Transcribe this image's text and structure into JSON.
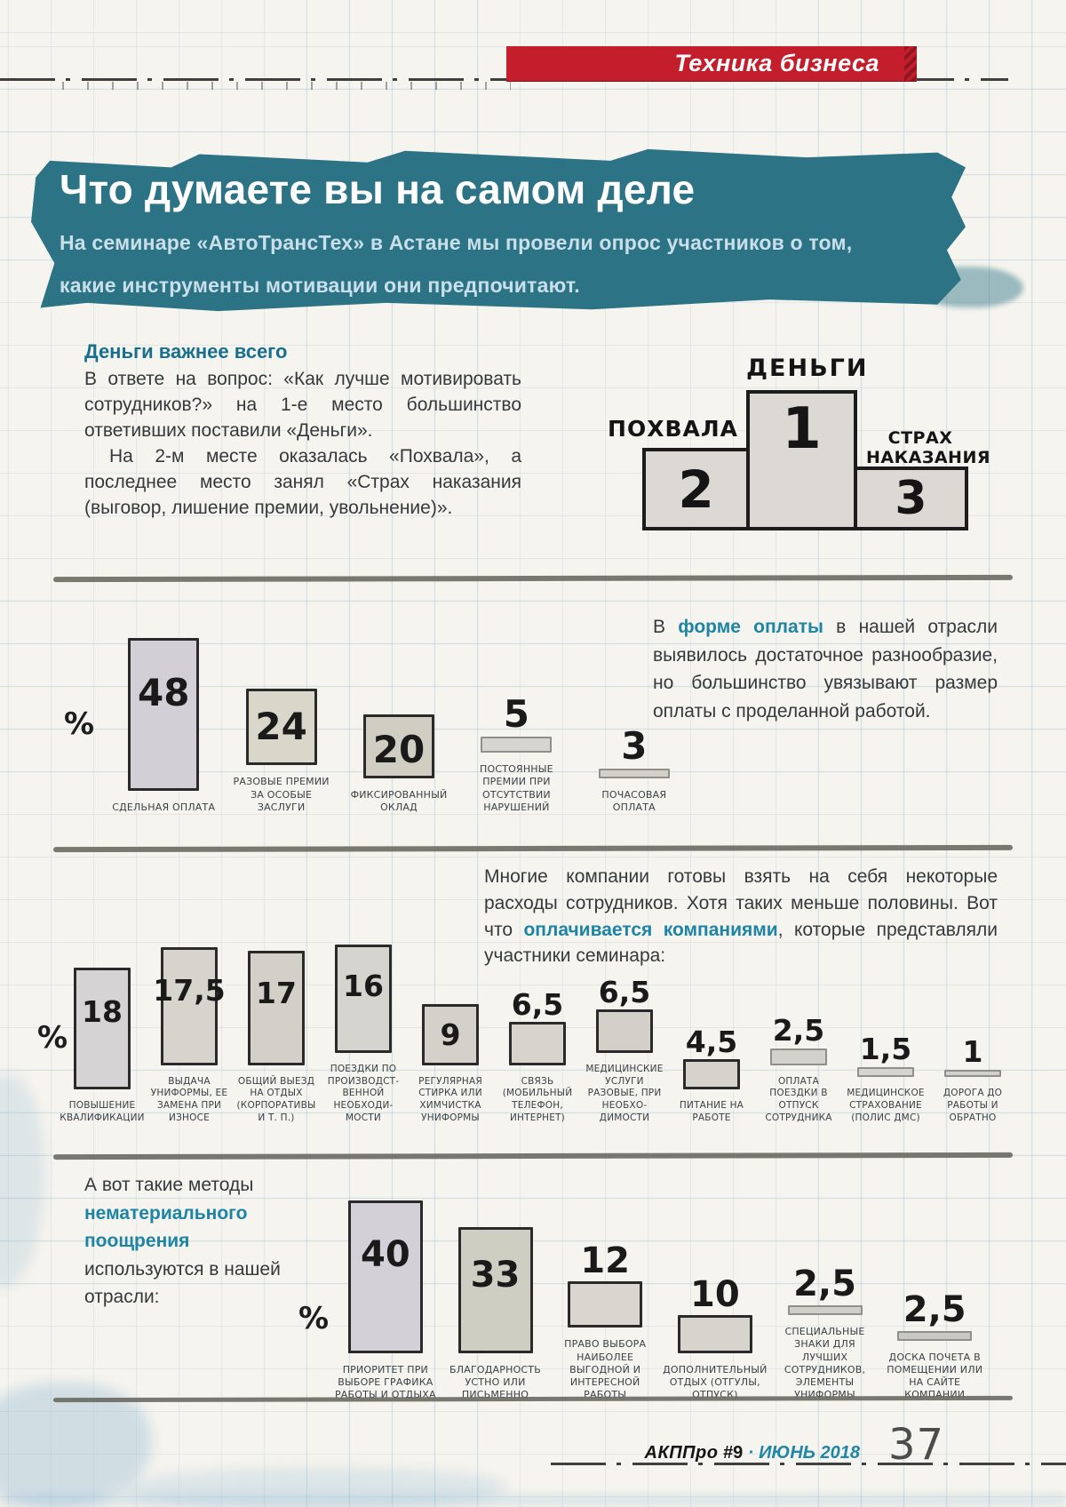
{
  "colors": {
    "accent_teal": "#1d84a5",
    "banner_teal": "#2d7386",
    "ribbon_red": "#c41e2c"
  },
  "header": {
    "ribbon": "Техника бизнеса"
  },
  "hero": {
    "title": "Что думаете вы на самом деле",
    "subtitle_line1": "На семинаре «АвтоТрансТех» в Астане мы провели опрос участников о том,",
    "subtitle_line2": "какие инструменты мотивации они предпочитают."
  },
  "intro": {
    "heading": "Деньги важнее всего",
    "para1": "В ответе на вопрос: «Как лучше мотивировать сотрудников?» на 1-е место большинство ответивших поставили «Деньги».",
    "para2": "На 2-м месте оказалась «Похвала», а последнее место занял «Страх наказания (выговор, лишение премии, увольнение)»."
  },
  "podium": {
    "first": {
      "label": "ДЕНЬГИ",
      "rank": "1"
    },
    "second": {
      "label": "ПОХВАЛА",
      "rank": "2"
    },
    "third": {
      "label": "СТРАХ НАКАЗАНИЯ",
      "rank": "3"
    }
  },
  "payment_text": {
    "pre": "В ",
    "hl": "форме оплаты",
    "post": " в нашей отрасли выявилось достаточное разнообразие, но большинство увязывают размер оплаты с проделанной работой."
  },
  "company_text": {
    "pre": "Многие компании готовы взять на себя некоторые расходы сотрудников. Хотя таких меньше половины. Вот что ",
    "hl": "оплачивается компаниями",
    "post": ", которые представляли участники семинара:"
  },
  "nonmaterial_text": {
    "pre": "А вот такие методы ",
    "hl": "нематериального поощрения",
    "post": " используются в нашей отрасли:"
  },
  "chart_data": [
    {
      "type": "bar",
      "title": "",
      "xlabel": "",
      "ylabel": "%",
      "unit": "%",
      "grid": false,
      "legend": "none",
      "categories": [
        "СДЕЛЬНАЯ ОПЛАТА",
        "РАЗОВЫЕ ПРЕМИИ ЗА ОСОБЫЕ ЗАСЛУГИ",
        "ФИКСИРОВАННЫЙ ОКЛАД",
        "ПОСТОЯННЫЕ ПРЕМИИ ПРИ ОТСУТСТВИИ НАРУШЕНИЙ",
        "ПОЧАСОВАЯ ОПЛАТА"
      ],
      "values": [
        48,
        24,
        20,
        5,
        3
      ],
      "value_labels": [
        "48",
        "24",
        "20",
        "5",
        "3"
      ],
      "bar_colors": [
        "#d2cfd7",
        "#d9d6ca",
        "#d0cec2",
        "#d7d5d0",
        "#d2d0c9"
      ]
    },
    {
      "type": "bar",
      "title": "",
      "xlabel": "",
      "ylabel": "%",
      "unit": "%",
      "grid": false,
      "legend": "none",
      "categories": [
        "ПОВЫШЕНИЕ КВАЛИФИКАЦИИ",
        "ВЫДАЧА УНИФОРМЫ, ЕЕ ЗАМЕНА ПРИ ИЗНОСЕ",
        "ОБЩИЙ ВЫЕЗД НА ОТДЫХ (КОРПОРАТИВЫ И Т. П.)",
        "ПОЕЗДКИ ПО ПРОИЗВОДСТ-ВЕННОЙ НЕОБХОДИ-МОСТИ",
        "РЕГУЛЯРНАЯ СТИРКА ИЛИ ХИМЧИСТКА УНИФОРМЫ",
        "СВЯЗЬ (МОБИЛЬНЫЙ ТЕЛЕФОН, ИНТЕРНЕТ)",
        "МЕДИЦИНСКИЕ УСЛУГИ РАЗОВЫЕ, ПРИ НЕОБХО-ДИМОСТИ",
        "ПИТАНИЕ НА РАБОТЕ",
        "ОПЛАТА ПОЕЗДКИ В ОТПУСК СОТРУДНИКА",
        "МЕДИЦИНСКОЕ СТРАХОВАНИЕ (ПОЛИС ДМС)",
        "ДОРОГА ДО РАБОТЫ И ОБРАТНО"
      ],
      "values": [
        18,
        17.5,
        17,
        16,
        9,
        6.5,
        6.5,
        4.5,
        2.5,
        1.5,
        1
      ],
      "value_labels": [
        "18",
        "17,5",
        "17",
        "16",
        "9",
        "6,5",
        "6,5",
        "4,5",
        "2,5",
        "1,5",
        "1"
      ],
      "bar_colors": [
        "#d5d3d3",
        "#d6d4cd",
        "#d2d0c8",
        "#d6d4cf",
        "#d3d1ca",
        "#d6d4cd",
        "#d2d0c8",
        "#d5d3cc",
        "#d3d1cc",
        "#d6d4cf",
        "#d2d0cb"
      ]
    },
    {
      "type": "bar",
      "title": "",
      "xlabel": "",
      "ylabel": "%",
      "unit": "%",
      "grid": false,
      "legend": "none",
      "categories": [
        "ПРИОРИТЕТ ПРИ ВЫБОРЕ ГРАФИКА РАБОТЫ И ОТДЫХА",
        "БЛАГОДАРНОСТЬ УСТНО ИЛИ ПИСЬМЕННО",
        "ПРАВО ВЫБОРА НАИБОЛЕЕ ВЫГОДНОЙ И ИНТЕРЕСНОЙ РАБОТЫ",
        "ДОПОЛНИТЕЛЬНЫЙ ОТДЫХ (ОТГУЛЫ, ОТПУСК)",
        "СПЕЦИАЛЬНЫЕ ЗНАКИ ДЛЯ ЛУЧШИХ СОТРУДНИКОВ, ЭЛЕМЕНТЫ УНИФОРМЫ",
        "ДОСКА ПОЧЕТА В ПОМЕЩЕНИИ ИЛИ НА САЙТЕ КОМПАНИИ"
      ],
      "values": [
        40,
        33,
        12,
        10,
        2.5,
        2.5
      ],
      "value_labels": [
        "40",
        "33",
        "12",
        "10",
        "2,5",
        "2,5"
      ],
      "bar_colors": [
        "#d3d0d8",
        "#cfcec2",
        "#d8d6cf",
        "#d6d4cd",
        "#d0cec9",
        "#c9c8c2"
      ]
    }
  ],
  "footer": {
    "brand": "АКППро",
    "issue": "#9",
    "separator": "·",
    "date": "ИЮНЬ 2018",
    "page_number": "37"
  }
}
